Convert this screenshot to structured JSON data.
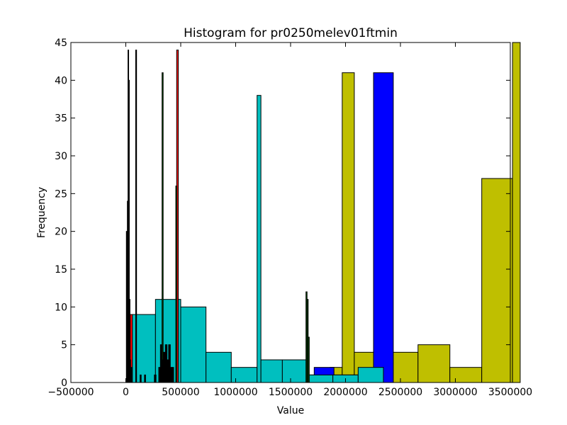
{
  "chart_data": {
    "type": "bar",
    "title": "Histogram for pr0250melev01ftmin",
    "xlabel": "Value",
    "ylabel": "Frequency",
    "xlim": [
      -500000,
      3500000
    ],
    "ylim": [
      0,
      45
    ],
    "x_ticks": [
      -500000,
      0,
      500000,
      1000000,
      1500000,
      2000000,
      2500000,
      3000000,
      3500000
    ],
    "x_tick_labels": [
      "−500000",
      "0",
      "500000",
      "1000000",
      "1500000",
      "2000000",
      "2500000",
      "3000000",
      "3500000"
    ],
    "y_ticks": [
      0,
      5,
      10,
      15,
      20,
      25,
      30,
      35,
      40,
      45
    ],
    "y_tick_labels": [
      "0",
      "5",
      "10",
      "15",
      "20",
      "25",
      "30",
      "35",
      "40",
      "45"
    ],
    "grid": false,
    "series": [
      {
        "color": "#bfbf00",
        "bars": [
          {
            "x0": 1860000,
            "x1": 1970000,
            "v": 2
          },
          {
            "x0": 1970000,
            "x1": 2080000,
            "v": 41
          },
          {
            "x0": 2080000,
            "x1": 2370000,
            "v": 4
          },
          {
            "x0": 2370000,
            "x1": 2660000,
            "v": 4
          },
          {
            "x0": 2660000,
            "x1": 2950000,
            "v": 5
          },
          {
            "x0": 2950000,
            "x1": 3240000,
            "v": 2
          },
          {
            "x0": 3240000,
            "x1": 3520000,
            "v": 27
          },
          {
            "x0": 3520000,
            "x1": 3590000,
            "v": 45
          }
        ]
      },
      {
        "color": "#0000ff",
        "bars": [
          {
            "x0": 1195000,
            "x1": 1380000,
            "v": 1
          },
          {
            "x0": 1530000,
            "x1": 1715000,
            "v": 1
          },
          {
            "x0": 1715000,
            "x1": 1895000,
            "v": 2
          },
          {
            "x0": 1895000,
            "x1": 2075000,
            "v": 1
          },
          {
            "x0": 2075000,
            "x1": 2255000,
            "v": 1
          },
          {
            "x0": 2255000,
            "x1": 2435000,
            "v": 41
          }
        ]
      },
      {
        "color": "#00bfbf",
        "bars": [
          {
            "x0": 40000,
            "x1": 270000,
            "v": 9
          },
          {
            "x0": 270000,
            "x1": 500000,
            "v": 11
          },
          {
            "x0": 500000,
            "x1": 730000,
            "v": 10
          },
          {
            "x0": 730000,
            "x1": 960000,
            "v": 4
          },
          {
            "x0": 960000,
            "x1": 1195000,
            "v": 2
          },
          {
            "x0": 1195000,
            "x1": 1230000,
            "v": 38
          },
          {
            "x0": 1230000,
            "x1": 1425000,
            "v": 3
          },
          {
            "x0": 1425000,
            "x1": 1655000,
            "v": 3
          },
          {
            "x0": 1655000,
            "x1": 1885000,
            "v": 1
          },
          {
            "x0": 1885000,
            "x1": 2115000,
            "v": 1
          },
          {
            "x0": 2115000,
            "x1": 2345000,
            "v": 2
          }
        ]
      },
      {
        "color": "#ff0000",
        "bars": [
          {
            "x0": 20000,
            "x1": 40000,
            "v": 9
          },
          {
            "x0": 40000,
            "x1": 60000,
            "v": 9
          },
          {
            "x0": 463000,
            "x1": 478000,
            "v": 44
          }
        ]
      },
      {
        "color": "#006400",
        "bars": [
          {
            "x0": 14000,
            "x1": 20000,
            "v": 24
          },
          {
            "x0": 20000,
            "x1": 26000,
            "v": 44
          },
          {
            "x0": 26000,
            "x1": 32000,
            "v": 40
          },
          {
            "x0": 32000,
            "x1": 38000,
            "v": 11
          },
          {
            "x0": 38000,
            "x1": 44000,
            "v": 3
          },
          {
            "x0": 330000,
            "x1": 340000,
            "v": 41
          },
          {
            "x0": 455000,
            "x1": 465000,
            "v": 26
          },
          {
            "x0": 1640000,
            "x1": 1650000,
            "v": 12
          },
          {
            "x0": 1650000,
            "x1": 1660000,
            "v": 11
          },
          {
            "x0": 1660000,
            "x1": 1670000,
            "v": 6
          }
        ]
      },
      {
        "color": "#000000",
        "bars": [
          {
            "x0": 5000,
            "x1": 12000,
            "v": 20
          },
          {
            "x0": 12000,
            "x1": 18000,
            "v": 18
          },
          {
            "x0": 48000,
            "x1": 55000,
            "v": 2
          },
          {
            "x0": 90000,
            "x1": 98000,
            "v": 44
          },
          {
            "x0": 130000,
            "x1": 140000,
            "v": 1
          },
          {
            "x0": 170000,
            "x1": 180000,
            "v": 1
          },
          {
            "x0": 260000,
            "x1": 275000,
            "v": 1
          },
          {
            "x0": 300000,
            "x1": 315000,
            "v": 2
          },
          {
            "x0": 315000,
            "x1": 330000,
            "v": 5
          },
          {
            "x0": 330000,
            "x1": 345000,
            "v": 3
          },
          {
            "x0": 345000,
            "x1": 360000,
            "v": 4
          },
          {
            "x0": 360000,
            "x1": 375000,
            "v": 5
          },
          {
            "x0": 375000,
            "x1": 390000,
            "v": 3
          },
          {
            "x0": 390000,
            "x1": 405000,
            "v": 5
          },
          {
            "x0": 405000,
            "x1": 420000,
            "v": 2
          },
          {
            "x0": 420000,
            "x1": 435000,
            "v": 2
          }
        ]
      }
    ]
  }
}
